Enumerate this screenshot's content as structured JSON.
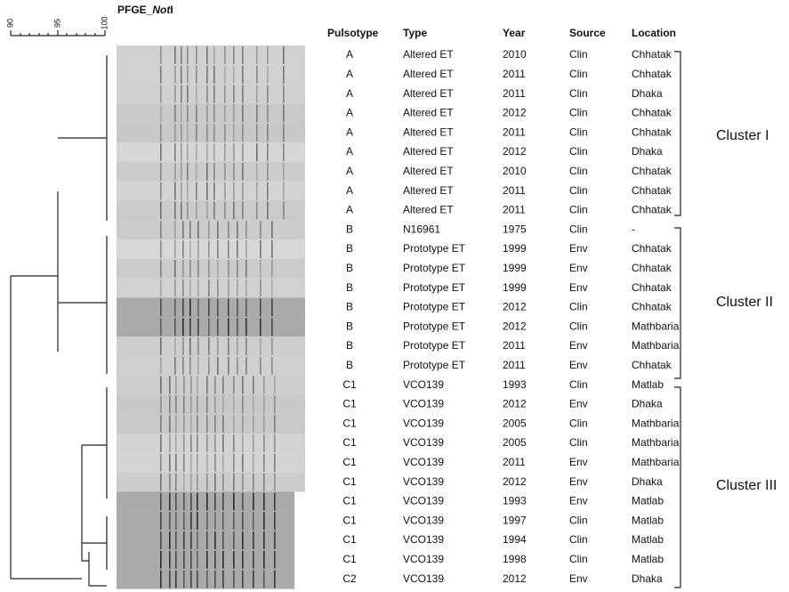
{
  "figure": {
    "title": {
      "prefix": "PFGE_",
      "italic": "Not",
      "suffix": "I"
    },
    "scale_labels": [
      90,
      95,
      100
    ],
    "table": {
      "columns": [
        "Pulsotype",
        "Type",
        "Year",
        "Source",
        "Location"
      ],
      "rows": [
        [
          "A",
          "Altered ET",
          "2010",
          "Clin",
          "Chhatak"
        ],
        [
          "A",
          "Altered ET",
          "2011",
          "Clin",
          "Chhatak"
        ],
        [
          "A",
          "Altered ET",
          "2011",
          "Clin",
          "Dhaka"
        ],
        [
          "A",
          "Altered ET",
          "2012",
          "Clin",
          "Chhatak"
        ],
        [
          "A",
          "Altered ET",
          "2011",
          "Clin",
          "Chhatak"
        ],
        [
          "A",
          "Altered ET",
          "2012",
          "Clin",
          "Dhaka"
        ],
        [
          "A",
          "Altered ET",
          "2010",
          "Clin",
          "Chhatak"
        ],
        [
          "A",
          "Altered ET",
          "2011",
          "Clin",
          "Chhatak"
        ],
        [
          "A",
          "Altered ET",
          "2011",
          "Clin",
          "Chhatak"
        ],
        [
          "B",
          "N16961",
          "1975",
          "Clin",
          "-"
        ],
        [
          "B",
          "Prototype ET",
          "1999",
          "Env",
          "Chhatak"
        ],
        [
          "B",
          "Prototype ET",
          "1999",
          "Env",
          "Chhatak"
        ],
        [
          "B",
          "Prototype ET",
          "1999",
          "Env",
          "Chhatak"
        ],
        [
          "B",
          "Prototype ET",
          "2012",
          "Clin",
          "Chhatak"
        ],
        [
          "B",
          "Prototype ET",
          "2012",
          "Clin",
          "Mathbaria"
        ],
        [
          "B",
          "Prototype ET",
          "2011",
          "Env",
          "Mathbaria"
        ],
        [
          "B",
          "Prototype ET",
          "2011",
          "Env",
          "Chhatak"
        ],
        [
          "C1",
          "VCO139",
          "1993",
          "Clin",
          "Matlab"
        ],
        [
          "C1",
          "VCO139",
          "2012",
          "Env",
          "Dhaka"
        ],
        [
          "C1",
          "VCO139",
          "2005",
          "Clin",
          "Mathbaria"
        ],
        [
          "C1",
          "VCO139",
          "2005",
          "Clin",
          "Mathbaria"
        ],
        [
          "C1",
          "VCO139",
          "2011",
          "Env",
          "Mathbaria"
        ],
        [
          "C1",
          "VCO139",
          "2012",
          "Env",
          "Dhaka"
        ],
        [
          "C1",
          "VCO139",
          "1993",
          "Env",
          "Matlab"
        ],
        [
          "C1",
          "VCO139",
          "1997",
          "Clin",
          "Matlab"
        ],
        [
          "C1",
          "VCO139",
          "1994",
          "Clin",
          "Matlab"
        ],
        [
          "C1",
          "VCO139",
          "1998",
          "Clin",
          "Matlab"
        ],
        [
          "C2",
          "VCO139",
          "2012",
          "Env",
          "Dhaka"
        ]
      ]
    },
    "clusters": [
      "Cluster I",
      "Cluster II",
      "Cluster III"
    ]
  }
}
